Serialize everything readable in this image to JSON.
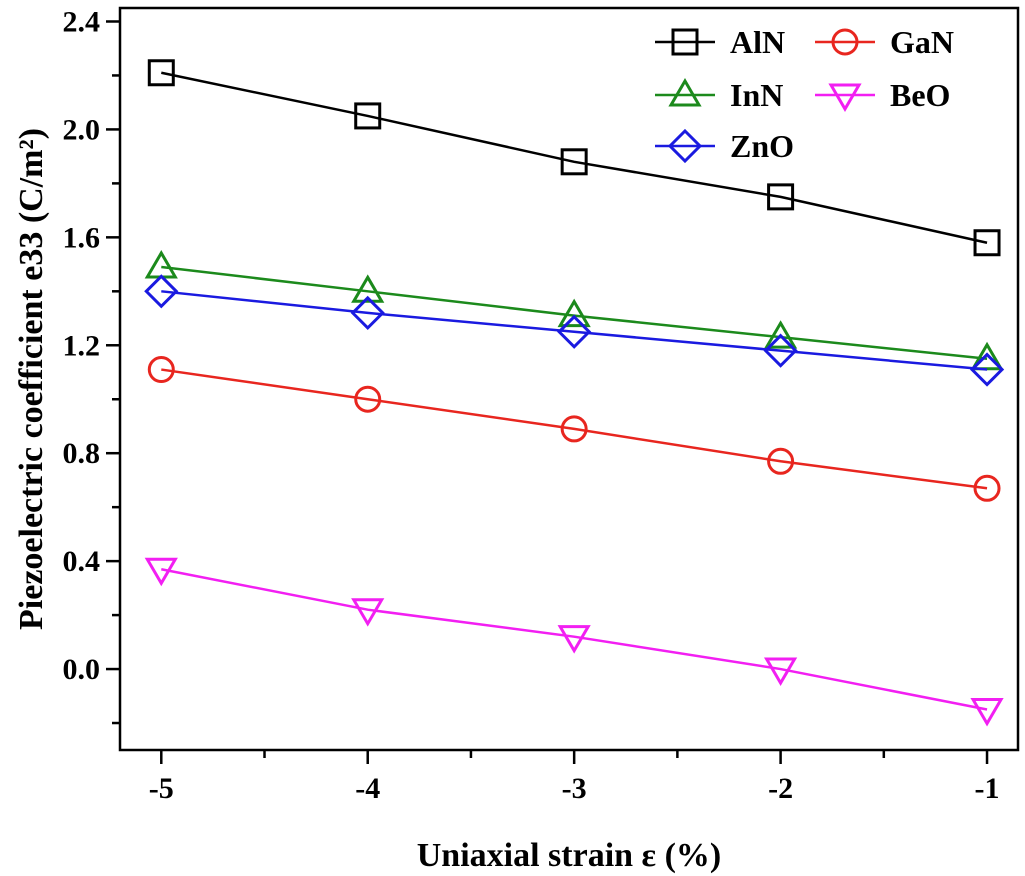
{
  "chart_data": {
    "type": "line",
    "xlabel": "Uniaxial strain ε (%)",
    "ylabel": "Piezoelectric coefficient e33 (C/m²)",
    "xlim": [
      -5.2,
      -0.85
    ],
    "ylim": [
      -0.3,
      2.45
    ],
    "xticks": [
      -5,
      -4,
      -3,
      -2,
      -1
    ],
    "yticks": [
      0.0,
      0.4,
      0.8,
      1.2,
      1.6,
      2.0,
      2.4
    ],
    "xtick_labels": [
      "-5",
      "-4",
      "-3",
      "-2",
      "-1"
    ],
    "ytick_labels": [
      "0.0",
      "0.4",
      "0.8",
      "1.2",
      "1.6",
      "2.0",
      "2.4"
    ],
    "grid": false,
    "legend_position": "top-right",
    "x": [
      -5,
      -4,
      -3,
      -2,
      -1
    ],
    "series": [
      {
        "name": "AlN",
        "marker": "square",
        "color": "#000000",
        "values": [
          2.21,
          2.05,
          1.88,
          1.75,
          1.58
        ]
      },
      {
        "name": "GaN",
        "marker": "circle",
        "color": "#e8261f",
        "values": [
          1.11,
          1.0,
          0.89,
          0.77,
          0.67
        ]
      },
      {
        "name": "InN",
        "marker": "triangle-up",
        "color": "#1c8a1c",
        "values": [
          1.49,
          1.4,
          1.31,
          1.23,
          1.15
        ]
      },
      {
        "name": "BeO",
        "marker": "triangle-down",
        "color": "#f21ff2",
        "values": [
          0.37,
          0.22,
          0.12,
          0.0,
          -0.15
        ]
      },
      {
        "name": "ZnO",
        "marker": "diamond",
        "color": "#1a1ae0",
        "values": [
          1.4,
          1.32,
          1.25,
          1.18,
          1.11
        ]
      }
    ]
  }
}
